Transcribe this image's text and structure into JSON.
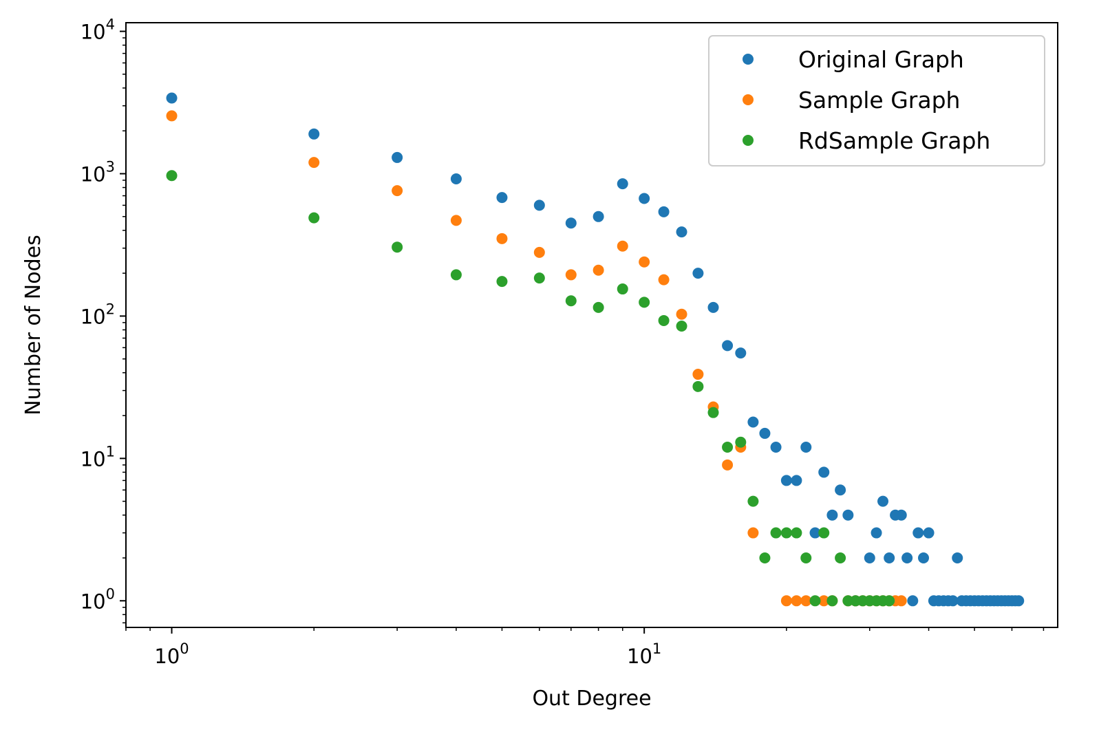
{
  "chart_data": {
    "type": "scatter",
    "xlabel": "Out Degree",
    "ylabel": "Number of Nodes",
    "xscale": "log",
    "yscale": "log",
    "xlim": [
      0.8,
      75
    ],
    "ylim": [
      0.65,
      11500
    ],
    "grid": false,
    "legend_position": "top-right",
    "x_ticks": [
      {
        "value": 1,
        "base": "10",
        "exp": "0"
      },
      {
        "value": 10,
        "base": "10",
        "exp": "1"
      }
    ],
    "y_ticks": [
      {
        "value": 1,
        "base": "10",
        "exp": "0"
      },
      {
        "value": 10,
        "base": "10",
        "exp": "1"
      },
      {
        "value": 100,
        "base": "10",
        "exp": "2"
      },
      {
        "value": 1000,
        "base": "10",
        "exp": "3"
      },
      {
        "value": 10000,
        "base": "10",
        "exp": "4"
      }
    ],
    "series": [
      {
        "name": "Original Graph",
        "color": "#1f77b4",
        "points": [
          [
            1,
            3400
          ],
          [
            2,
            1900
          ],
          [
            3,
            1300
          ],
          [
            4,
            920
          ],
          [
            5,
            680
          ],
          [
            6,
            600
          ],
          [
            7,
            450
          ],
          [
            8,
            500
          ],
          [
            9,
            850
          ],
          [
            10,
            670
          ],
          [
            11,
            540
          ],
          [
            12,
            390
          ],
          [
            13,
            200
          ],
          [
            14,
            115
          ],
          [
            15,
            62
          ],
          [
            16,
            55
          ],
          [
            17,
            18
          ],
          [
            18,
            15
          ],
          [
            19,
            12
          ],
          [
            20,
            7
          ],
          [
            21,
            7
          ],
          [
            22,
            12
          ],
          [
            23,
            3
          ],
          [
            24,
            8
          ],
          [
            25,
            4
          ],
          [
            26,
            6
          ],
          [
            27,
            4
          ],
          [
            28,
            1
          ],
          [
            30,
            2
          ],
          [
            31,
            3
          ],
          [
            32,
            5
          ],
          [
            33,
            2
          ],
          [
            34,
            4
          ],
          [
            35,
            4
          ],
          [
            36,
            2
          ],
          [
            37,
            1
          ],
          [
            38,
            3
          ],
          [
            39,
            2
          ],
          [
            40,
            3
          ],
          [
            41,
            1
          ],
          [
            42,
            1
          ],
          [
            43,
            1
          ],
          [
            44,
            1
          ],
          [
            45,
            1
          ],
          [
            46,
            2
          ],
          [
            47,
            1
          ],
          [
            48,
            1
          ],
          [
            49,
            1
          ],
          [
            50,
            1
          ],
          [
            51,
            1
          ],
          [
            52,
            1
          ],
          [
            53,
            1
          ],
          [
            54,
            1
          ],
          [
            55,
            1
          ],
          [
            56,
            1
          ],
          [
            57,
            1
          ],
          [
            58,
            1
          ],
          [
            59,
            1
          ],
          [
            60,
            1
          ],
          [
            61,
            1
          ],
          [
            62,
            1
          ]
        ]
      },
      {
        "name": "Sample Graph",
        "color": "#ff7f0e",
        "points": [
          [
            1,
            2550
          ],
          [
            2,
            1200
          ],
          [
            3,
            760
          ],
          [
            4,
            470
          ],
          [
            5,
            350
          ],
          [
            6,
            280
          ],
          [
            7,
            195
          ],
          [
            8,
            210
          ],
          [
            9,
            310
          ],
          [
            10,
            240
          ],
          [
            11,
            180
          ],
          [
            12,
            103
          ],
          [
            13,
            39
          ],
          [
            14,
            23
          ],
          [
            15,
            9
          ],
          [
            16,
            12
          ],
          [
            17,
            3
          ],
          [
            20,
            1
          ],
          [
            21,
            1
          ],
          [
            22,
            1
          ],
          [
            24,
            1
          ],
          [
            25,
            1
          ],
          [
            27,
            1
          ],
          [
            28,
            1
          ],
          [
            29,
            1
          ],
          [
            30,
            1
          ],
          [
            31,
            1
          ],
          [
            32,
            1
          ],
          [
            33,
            1
          ],
          [
            34,
            1
          ],
          [
            35,
            1
          ]
        ]
      },
      {
        "name": "RdSample Graph",
        "color": "#2ca02c",
        "points": [
          [
            1,
            970
          ],
          [
            2,
            490
          ],
          [
            3,
            305
          ],
          [
            4,
            195
          ],
          [
            5,
            175
          ],
          [
            6,
            185
          ],
          [
            7,
            128
          ],
          [
            8,
            115
          ],
          [
            9,
            155
          ],
          [
            10,
            125
          ],
          [
            11,
            93
          ],
          [
            12,
            85
          ],
          [
            13,
            32
          ],
          [
            14,
            21
          ],
          [
            15,
            12
          ],
          [
            16,
            13
          ],
          [
            17,
            5
          ],
          [
            18,
            2
          ],
          [
            19,
            3
          ],
          [
            20,
            3
          ],
          [
            21,
            3
          ],
          [
            22,
            2
          ],
          [
            23,
            1
          ],
          [
            24,
            3
          ],
          [
            25,
            1
          ],
          [
            26,
            2
          ],
          [
            27,
            1
          ],
          [
            28,
            1
          ],
          [
            29,
            1
          ],
          [
            30,
            1
          ],
          [
            31,
            1
          ],
          [
            32,
            1
          ],
          [
            33,
            1
          ]
        ]
      }
    ]
  }
}
